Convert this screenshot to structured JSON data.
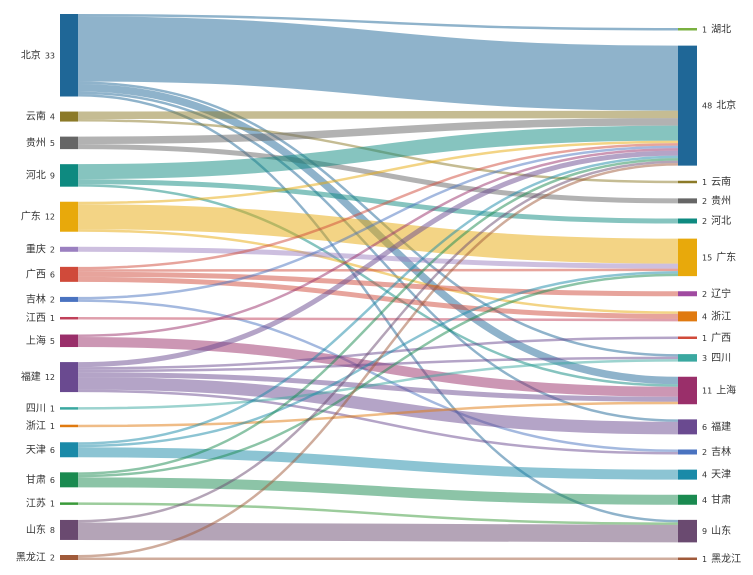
{
  "chart_data": {
    "type": "sankey",
    "sources": [
      {
        "name": "北京",
        "value": 33,
        "color": "#1f6797"
      },
      {
        "name": "云南",
        "value": 4,
        "color": "#8c7a28"
      },
      {
        "name": "贵州",
        "value": 5,
        "color": "#666666"
      },
      {
        "name": "河北",
        "value": 9,
        "color": "#0e8a80"
      },
      {
        "name": "广东",
        "value": 12,
        "color": "#e8a90b"
      },
      {
        "name": "重庆",
        "value": 2,
        "color": "#9b80c0"
      },
      {
        "name": "广西",
        "value": 6,
        "color": "#d04a3a"
      },
      {
        "name": "吉林",
        "value": 2,
        "color": "#4a73c0"
      },
      {
        "name": "江西",
        "value": 1,
        "color": "#c0405a"
      },
      {
        "name": "上海",
        "value": 5,
        "color": "#9a2f6a"
      },
      {
        "name": "福建",
        "value": 12,
        "color": "#6a4a90"
      },
      {
        "name": "四川",
        "value": 1,
        "color": "#3aa8a0"
      },
      {
        "name": "浙江",
        "value": 1,
        "color": "#e07a10"
      },
      {
        "name": "天津",
        "value": 6,
        "color": "#1a8aa8"
      },
      {
        "name": "甘肃",
        "value": 6,
        "color": "#1a8a50"
      },
      {
        "name": "江苏",
        "value": 1,
        "color": "#3a9a3a"
      },
      {
        "name": "山东",
        "value": 8,
        "color": "#6a4a70"
      },
      {
        "name": "黑龙江",
        "value": 2,
        "color": "#a05a3a"
      }
    ],
    "targets": [
      {
        "name": "湖北",
        "value": 1,
        "color": "#7ab040"
      },
      {
        "name": "北京",
        "value": 48,
        "color": "#1f6797"
      },
      {
        "name": "云南",
        "value": 1,
        "color": "#8c7a28"
      },
      {
        "name": "贵州",
        "value": 2,
        "color": "#666666"
      },
      {
        "name": "河北",
        "value": 2,
        "color": "#0e8a80"
      },
      {
        "name": "广东",
        "value": 15,
        "color": "#e8a90b"
      },
      {
        "name": "辽宁",
        "value": 2,
        "color": "#a04aa0"
      },
      {
        "name": "浙江",
        "value": 4,
        "color": "#e07a10"
      },
      {
        "name": "广西",
        "value": 1,
        "color": "#d04a3a"
      },
      {
        "name": "四川",
        "value": 3,
        "color": "#3aa8a0"
      },
      {
        "name": "上海",
        "value": 11,
        "color": "#9a2f6a"
      },
      {
        "name": "福建",
        "value": 6,
        "color": "#6a4a90"
      },
      {
        "name": "吉林",
        "value": 2,
        "color": "#4a73c0"
      },
      {
        "name": "天津",
        "value": 4,
        "color": "#1a8aa8"
      },
      {
        "name": "甘肃",
        "value": 4,
        "color": "#1a8a50"
      },
      {
        "name": "山东",
        "value": 9,
        "color": "#6a4a70"
      },
      {
        "name": "黑龙江",
        "value": 1,
        "color": "#a05a3a"
      }
    ],
    "links": [
      {
        "source": 0,
        "target": 0,
        "value": 1
      },
      {
        "source": 0,
        "target": 1,
        "value": 26
      },
      {
        "source": 0,
        "target": 9,
        "value": 1
      },
      {
        "source": 0,
        "target": 10,
        "value": 3
      },
      {
        "source": 0,
        "target": 11,
        "value": 1
      },
      {
        "source": 0,
        "target": 15,
        "value": 1
      },
      {
        "source": 1,
        "target": 1,
        "value": 3
      },
      {
        "source": 1,
        "target": 2,
        "value": 1
      },
      {
        "source": 2,
        "target": 1,
        "value": 3
      },
      {
        "source": 2,
        "target": 3,
        "value": 2
      },
      {
        "source": 3,
        "target": 1,
        "value": 6
      },
      {
        "source": 3,
        "target": 4,
        "value": 2
      },
      {
        "source": 3,
        "target": 10,
        "value": 1
      },
      {
        "source": 4,
        "target": 1,
        "value": 1
      },
      {
        "source": 4,
        "target": 5,
        "value": 10
      },
      {
        "source": 4,
        "target": 7,
        "value": 1
      },
      {
        "source": 5,
        "target": 5,
        "value": 2
      },
      {
        "source": 6,
        "target": 1,
        "value": 1
      },
      {
        "source": 6,
        "target": 5,
        "value": 1
      },
      {
        "source": 6,
        "target": 6,
        "value": 2
      },
      {
        "source": 6,
        "target": 7,
        "value": 2
      },
      {
        "source": 7,
        "target": 1,
        "value": 1
      },
      {
        "source": 7,
        "target": 12,
        "value": 1
      },
      {
        "source": 8,
        "target": 7,
        "value": 1
      },
      {
        "source": 9,
        "target": 1,
        "value": 1
      },
      {
        "source": 9,
        "target": 10,
        "value": 4
      },
      {
        "source": 10,
        "target": 1,
        "value": 2
      },
      {
        "source": 10,
        "target": 8,
        "value": 1
      },
      {
        "source": 10,
        "target": 9,
        "value": 1
      },
      {
        "source": 10,
        "target": 10,
        "value": 2
      },
      {
        "source": 10,
        "target": 11,
        "value": 5
      },
      {
        "source": 10,
        "target": 12,
        "value": 1
      },
      {
        "source": 11,
        "target": 9,
        "value": 1
      },
      {
        "source": 12,
        "target": 10,
        "value": 1
      },
      {
        "source": 13,
        "target": 1,
        "value": 1
      },
      {
        "source": 13,
        "target": 5,
        "value": 1
      },
      {
        "source": 13,
        "target": 13,
        "value": 4
      },
      {
        "source": 14,
        "target": 1,
        "value": 1
      },
      {
        "source": 14,
        "target": 5,
        "value": 1
      },
      {
        "source": 14,
        "target": 14,
        "value": 4
      },
      {
        "source": 15,
        "target": 15,
        "value": 1
      },
      {
        "source": 16,
        "target": 1,
        "value": 1
      },
      {
        "source": 16,
        "target": 15,
        "value": 7
      },
      {
        "source": 17,
        "target": 1,
        "value": 1
      },
      {
        "source": 17,
        "target": 16,
        "value": 1
      }
    ]
  }
}
